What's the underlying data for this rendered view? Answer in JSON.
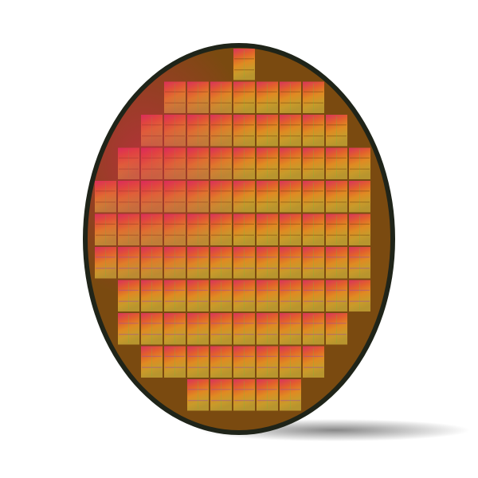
{
  "colors": {
    "background": "#ffffff",
    "wafer_edge": "#1f2419",
    "die_top": "#d8345c",
    "die_upper": "#e2602c",
    "die_middle": "#e08a22",
    "die_lower": "#c99a2a",
    "die_bottom": "#b8952e",
    "scribe_line": "#7a4a10",
    "highlight_green": "#6fbf3a",
    "highlight_purple": "#9a4aa8",
    "shadow": "#8a8a8a"
  }
}
